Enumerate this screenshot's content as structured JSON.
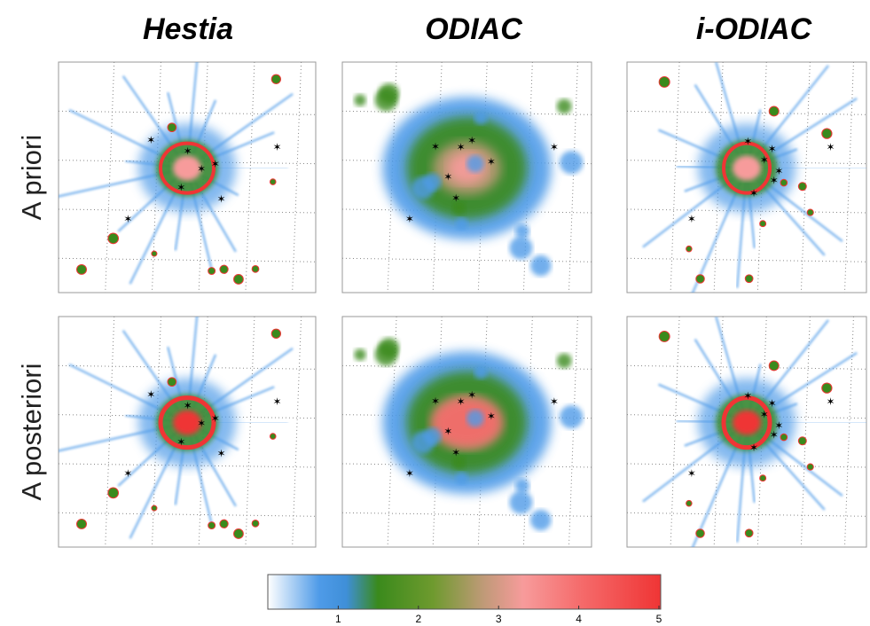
{
  "columns": [
    "Hestia",
    "ODIAC",
    "i-ODIAC"
  ],
  "rows": [
    "A priori",
    "A posteriori"
  ],
  "colorbar": {
    "lim": [
      0,
      5
    ],
    "ticks": [
      1,
      2,
      3,
      4,
      5
    ]
  }
}
